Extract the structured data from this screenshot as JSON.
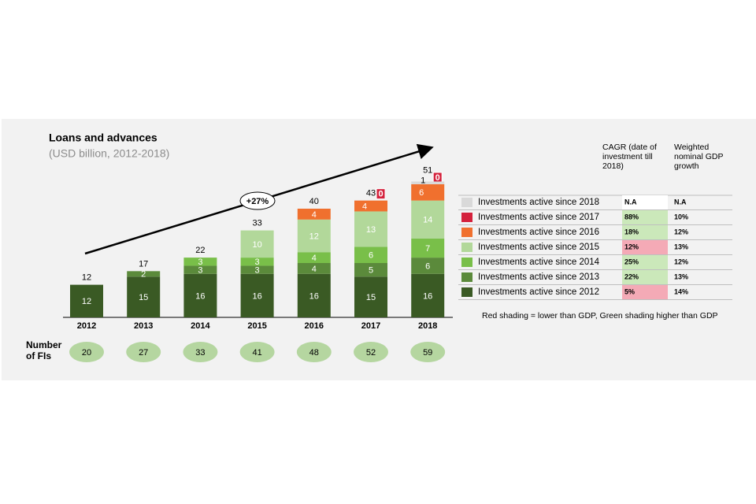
{
  "chart_data": {
    "type": "stacked-bar",
    "title": "Loans and advances",
    "subtitle": "(USD billion, 2012-2018)",
    "annotation": "+27%",
    "categories": [
      "2012",
      "2013",
      "2014",
      "2015",
      "2016",
      "2017",
      "2018"
    ],
    "totals": [
      12,
      17,
      22,
      33,
      40,
      43,
      51
    ],
    "series": [
      {
        "name": "Investments active since 2012",
        "color": "#3a5a24",
        "values": [
          12,
          15,
          16,
          16,
          16,
          15,
          16
        ],
        "cagr": "5%",
        "cagr_fill": "#f4aab6",
        "gdp": "14%"
      },
      {
        "name": "Investments active since 2013",
        "color": "#5b8a3b",
        "values": [
          null,
          2,
          3,
          3,
          4,
          5,
          6
        ],
        "cagr": "22%",
        "cagr_fill": "#cbe8ba",
        "gdp": "13%"
      },
      {
        "name": "Investments active since 2014",
        "color": "#79bf49",
        "values": [
          null,
          null,
          3,
          3,
          4,
          6,
          7
        ],
        "cagr": "25%",
        "cagr_fill": "#cbe8ba",
        "gdp": "12%"
      },
      {
        "name": "Investments active since 2015",
        "color": "#b2d89a",
        "values": [
          null,
          null,
          null,
          10,
          12,
          13,
          14
        ],
        "cagr": "12%",
        "cagr_fill": "#f4aab6",
        "gdp": "13%"
      },
      {
        "name": "Investments active since 2016",
        "color": "#f0702e",
        "values": [
          null,
          null,
          null,
          null,
          4,
          4,
          6
        ],
        "cagr": "18%",
        "cagr_fill": "#cbe8ba",
        "gdp": "12%"
      },
      {
        "name": "Investments active since 2017",
        "color": "#d4213c",
        "values": [
          null,
          null,
          null,
          null,
          null,
          0,
          0
        ],
        "cagr": "88%",
        "cagr_fill": "#cbe8ba",
        "gdp": "10%"
      },
      {
        "name": "Investments active since 2018",
        "color": "#d9d9d9",
        "values": [
          null,
          null,
          null,
          null,
          null,
          null,
          1
        ],
        "cagr": "N.A",
        "cagr_fill": "#ffffff",
        "gdp": "N.A"
      }
    ],
    "fis_label": "Number of FIs",
    "fis": [
      "20",
      "27",
      "33",
      "41",
      "48",
      "52",
      "59"
    ],
    "fis_color": "#b5d6a0",
    "cagr_header": "CAGR (date of investment till 2018)",
    "gdp_header": "Weighted nominal GDP growth",
    "footnote": "Red shading = lower than GDP, Green shading higher than GDP"
  }
}
